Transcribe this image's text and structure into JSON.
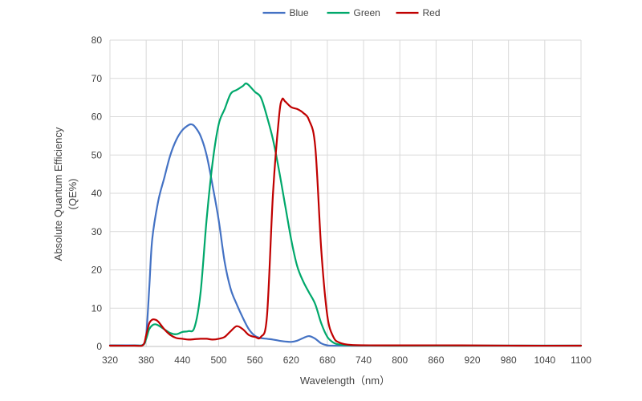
{
  "chart_data": {
    "type": "line",
    "title": "",
    "xlabel": "Wavelength（nm）",
    "ylabel_line1": "Absolute Quantum Efficiency",
    "ylabel_line2": "(QE%)",
    "xlim": [
      320,
      1100
    ],
    "ylim": [
      0,
      80
    ],
    "x_ticks": [
      320,
      380,
      440,
      500,
      560,
      620,
      680,
      740,
      800,
      860,
      920,
      980,
      1040,
      1100
    ],
    "y_ticks": [
      0,
      10,
      20,
      30,
      40,
      50,
      60,
      70,
      80
    ],
    "grid": true,
    "legend_position": "top-center",
    "series": [
      {
        "name": "Blue",
        "color": "#4472c4",
        "points": [
          [
            320,
            0.3
          ],
          [
            360,
            0.3
          ],
          [
            375,
            0.5
          ],
          [
            380,
            3
          ],
          [
            385,
            15
          ],
          [
            390,
            28
          ],
          [
            400,
            38
          ],
          [
            410,
            44
          ],
          [
            420,
            50
          ],
          [
            430,
            54
          ],
          [
            440,
            56.5
          ],
          [
            450,
            57.8
          ],
          [
            455,
            58
          ],
          [
            460,
            57.5
          ],
          [
            470,
            55
          ],
          [
            480,
            50
          ],
          [
            490,
            42
          ],
          [
            500,
            33
          ],
          [
            510,
            22
          ],
          [
            520,
            15
          ],
          [
            530,
            11
          ],
          [
            540,
            7.5
          ],
          [
            550,
            4.5
          ],
          [
            560,
            2.8
          ],
          [
            570,
            2.2
          ],
          [
            580,
            2
          ],
          [
            590,
            1.8
          ],
          [
            600,
            1.5
          ],
          [
            610,
            1.3
          ],
          [
            620,
            1.2
          ],
          [
            630,
            1.5
          ],
          [
            640,
            2.2
          ],
          [
            650,
            2.7
          ],
          [
            660,
            2
          ],
          [
            670,
            0.8
          ],
          [
            680,
            0.3
          ],
          [
            700,
            0.2
          ],
          [
            800,
            0.2
          ],
          [
            900,
            0.2
          ],
          [
            1000,
            0.2
          ],
          [
            1100,
            0.2
          ]
        ]
      },
      {
        "name": "Green",
        "color": "#00a86b",
        "points": [
          [
            320,
            0.2
          ],
          [
            360,
            0.2
          ],
          [
            375,
            0.4
          ],
          [
            380,
            2
          ],
          [
            385,
            4.5
          ],
          [
            390,
            5.5
          ],
          [
            395,
            5.8
          ],
          [
            400,
            5.5
          ],
          [
            410,
            4.5
          ],
          [
            420,
            3.5
          ],
          [
            430,
            3.2
          ],
          [
            440,
            3.8
          ],
          [
            450,
            4
          ],
          [
            460,
            5
          ],
          [
            470,
            14
          ],
          [
            480,
            33
          ],
          [
            490,
            48
          ],
          [
            500,
            58
          ],
          [
            510,
            62
          ],
          [
            520,
            66
          ],
          [
            530,
            67
          ],
          [
            540,
            68
          ],
          [
            545,
            68.7
          ],
          [
            550,
            68.2
          ],
          [
            560,
            66.5
          ],
          [
            570,
            65
          ],
          [
            580,
            60
          ],
          [
            590,
            54
          ],
          [
            600,
            46
          ],
          [
            610,
            37
          ],
          [
            620,
            28
          ],
          [
            630,
            21
          ],
          [
            640,
            17
          ],
          [
            650,
            14
          ],
          [
            660,
            11
          ],
          [
            670,
            6
          ],
          [
            680,
            2.5
          ],
          [
            690,
            1
          ],
          [
            700,
            0.5
          ],
          [
            720,
            0.3
          ],
          [
            800,
            0.2
          ],
          [
            900,
            0.2
          ],
          [
            1000,
            0.2
          ],
          [
            1100,
            0.2
          ]
        ]
      },
      {
        "name": "Red",
        "color": "#c00000",
        "points": [
          [
            320,
            0.2
          ],
          [
            360,
            0.2
          ],
          [
            375,
            0.4
          ],
          [
            380,
            3
          ],
          [
            385,
            6
          ],
          [
            390,
            7
          ],
          [
            395,
            7
          ],
          [
            400,
            6.5
          ],
          [
            410,
            4.5
          ],
          [
            420,
            3
          ],
          [
            430,
            2.2
          ],
          [
            440,
            2
          ],
          [
            450,
            1.8
          ],
          [
            460,
            1.9
          ],
          [
            470,
            2
          ],
          [
            480,
            2
          ],
          [
            490,
            1.8
          ],
          [
            500,
            2
          ],
          [
            510,
            2.5
          ],
          [
            520,
            4
          ],
          [
            530,
            5.3
          ],
          [
            540,
            4.5
          ],
          [
            550,
            3
          ],
          [
            560,
            2.5
          ],
          [
            570,
            2.5
          ],
          [
            580,
            8
          ],
          [
            590,
            40
          ],
          [
            600,
            60
          ],
          [
            605,
            64.5
          ],
          [
            610,
            64
          ],
          [
            620,
            62.5
          ],
          [
            630,
            62
          ],
          [
            640,
            61
          ],
          [
            650,
            59
          ],
          [
            660,
            52
          ],
          [
            670,
            25
          ],
          [
            680,
            8
          ],
          [
            690,
            2.5
          ],
          [
            700,
            1
          ],
          [
            720,
            0.4
          ],
          [
            760,
            0.3
          ],
          [
            800,
            0.3
          ],
          [
            900,
            0.3
          ],
          [
            1000,
            0.2
          ],
          [
            1100,
            0.2
          ]
        ]
      }
    ]
  }
}
